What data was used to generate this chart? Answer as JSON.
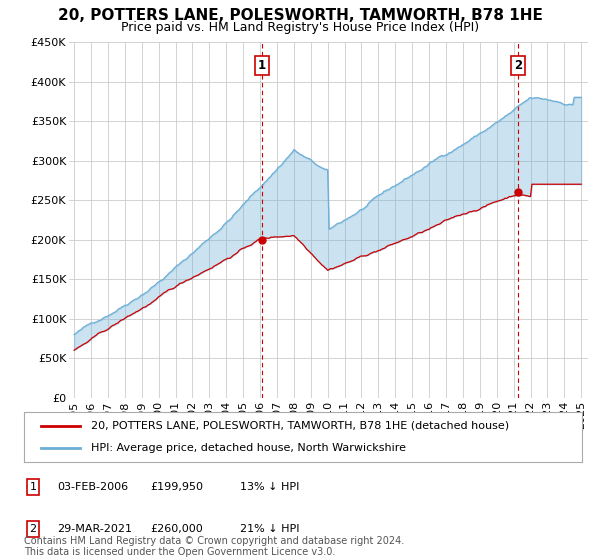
{
  "title": "20, POTTERS LANE, POLESWORTH, TAMWORTH, B78 1HE",
  "subtitle": "Price paid vs. HM Land Registry's House Price Index (HPI)",
  "ylim": [
    0,
    450000
  ],
  "yticks": [
    0,
    50000,
    100000,
    150000,
    200000,
    250000,
    300000,
    350000,
    400000,
    450000
  ],
  "ytick_labels": [
    "£0",
    "£50K",
    "£100K",
    "£150K",
    "£200K",
    "£250K",
    "£300K",
    "£350K",
    "£400K",
    "£450K"
  ],
  "x_start_year": 1995,
  "x_end_year": 2025,
  "sale1_year": 2006.09,
  "sale1_price": 199950,
  "sale2_year": 2021.25,
  "sale2_price": 260000,
  "sale1_date": "03-FEB-2006",
  "sale2_date": "29-MAR-2021",
  "hpi_color": "#6baed6",
  "hpi_fill_color": "#d6e8f5",
  "price_color": "#cc0000",
  "vline_color": "#cc0000",
  "background_color": "#ffffff",
  "grid_color": "#cccccc",
  "legend_line1": "20, POTTERS LANE, POLESWORTH, TAMWORTH, B78 1HE (detached house)",
  "legend_line2": "HPI: Average price, detached house, North Warwickshire",
  "footer": "Contains HM Land Registry data © Crown copyright and database right 2024.\nThis data is licensed under the Open Government Licence v3.0.",
  "title_fontsize": 11,
  "subtitle_fontsize": 9,
  "tick_fontsize": 8,
  "legend_fontsize": 8,
  "footer_fontsize": 7
}
